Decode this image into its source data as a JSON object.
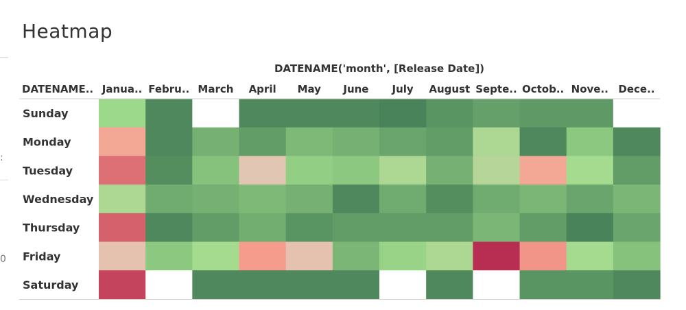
{
  "page": {
    "title": "Heatmap"
  },
  "left_edge": {
    "marks": [
      ":",
      "0"
    ]
  },
  "chart_data": {
    "type": "heatmap",
    "title": "Heatmap",
    "x_field_label": "DATENAME('month', [Release Date])",
    "y_field_label": "DATENAME..",
    "columns": [
      "Janua..",
      "Febru..",
      "March",
      "April",
      "May",
      "June",
      "July",
      "August",
      "Septe..",
      "Octob..",
      "Nove..",
      "Dece.."
    ],
    "rows": [
      "Sunday",
      "Monday",
      "Tuesday",
      "Wednesday",
      "Thursday",
      "Friday",
      "Saturday"
    ],
    "color_scale": {
      "type": "diverging",
      "low_color": "#b01f4a",
      "mid_color": "#e2c6b4",
      "high_color": "#3d7752",
      "empty_color": "#ffffff"
    },
    "values": [
      [
        0.66,
        0.94,
        null,
        0.94,
        0.94,
        0.94,
        0.96,
        0.9,
        0.86,
        0.88,
        0.88,
        null
      ],
      [
        0.38,
        0.94,
        0.8,
        0.87,
        0.77,
        0.8,
        0.84,
        0.87,
        0.62,
        0.94,
        0.72,
        0.94
      ],
      [
        0.22,
        0.92,
        0.74,
        0.5,
        0.7,
        0.72,
        0.62,
        0.8,
        0.6,
        0.38,
        0.64,
        0.87
      ],
      [
        0.62,
        0.82,
        0.8,
        0.77,
        0.8,
        0.94,
        0.82,
        0.92,
        0.82,
        0.78,
        0.84,
        0.78
      ],
      [
        0.18,
        0.94,
        0.87,
        0.81,
        0.9,
        0.87,
        0.87,
        0.87,
        0.78,
        0.87,
        0.96,
        0.84
      ],
      [
        0.48,
        0.72,
        0.64,
        0.34,
        0.48,
        0.78,
        0.68,
        0.62,
        0.04,
        0.32,
        0.64,
        0.74
      ],
      [
        0.1,
        null,
        0.94,
        0.94,
        0.94,
        0.94,
        null,
        0.94,
        null,
        0.9,
        0.9,
        0.94
      ]
    ]
  }
}
